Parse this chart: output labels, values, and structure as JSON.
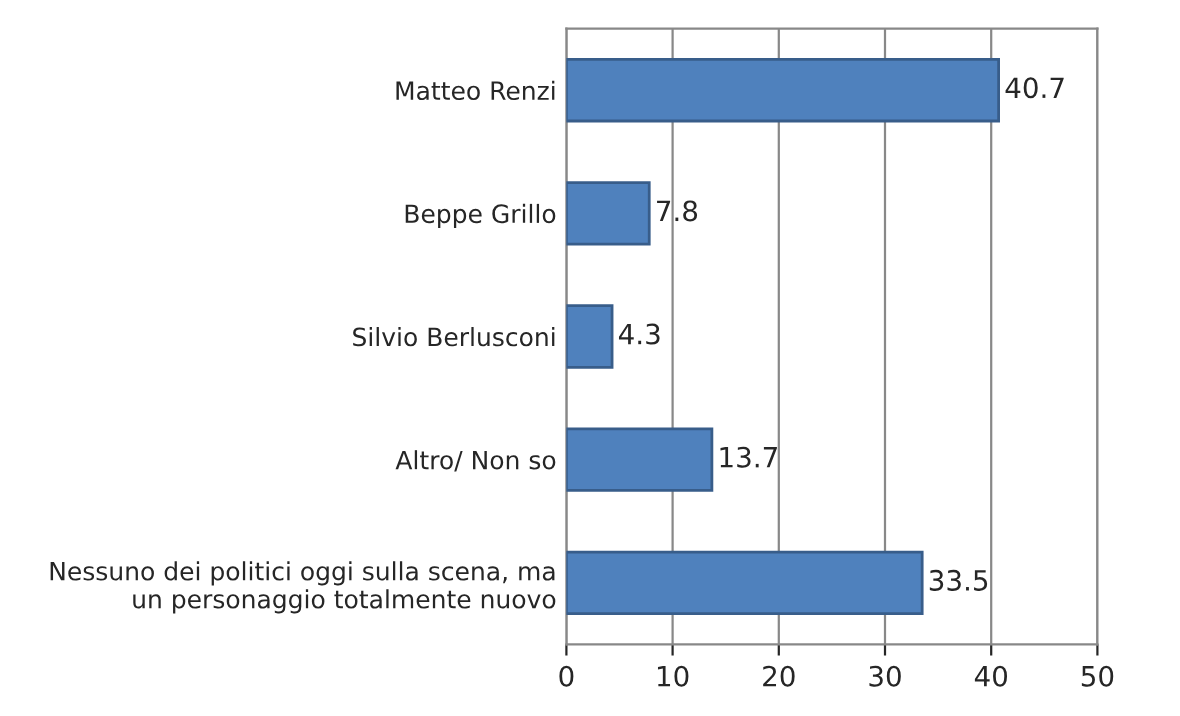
{
  "chart_data": {
    "type": "bar",
    "orientation": "horizontal",
    "categories": [
      "Matteo Renzi",
      "Beppe Grillo",
      "Silvio Berlusconi",
      "Altro/ Non so",
      "Nessuno dei politici oggi sulla scena, ma\nun personaggio totalmente nuovo"
    ],
    "values": [
      40.7,
      7.8,
      4.3,
      13.7,
      33.5
    ],
    "color": "#4f81bd",
    "data_labels": true,
    "xlim": [
      0,
      50
    ],
    "xticks": [
      0,
      10,
      20,
      30,
      40,
      50
    ],
    "grid": "x"
  }
}
